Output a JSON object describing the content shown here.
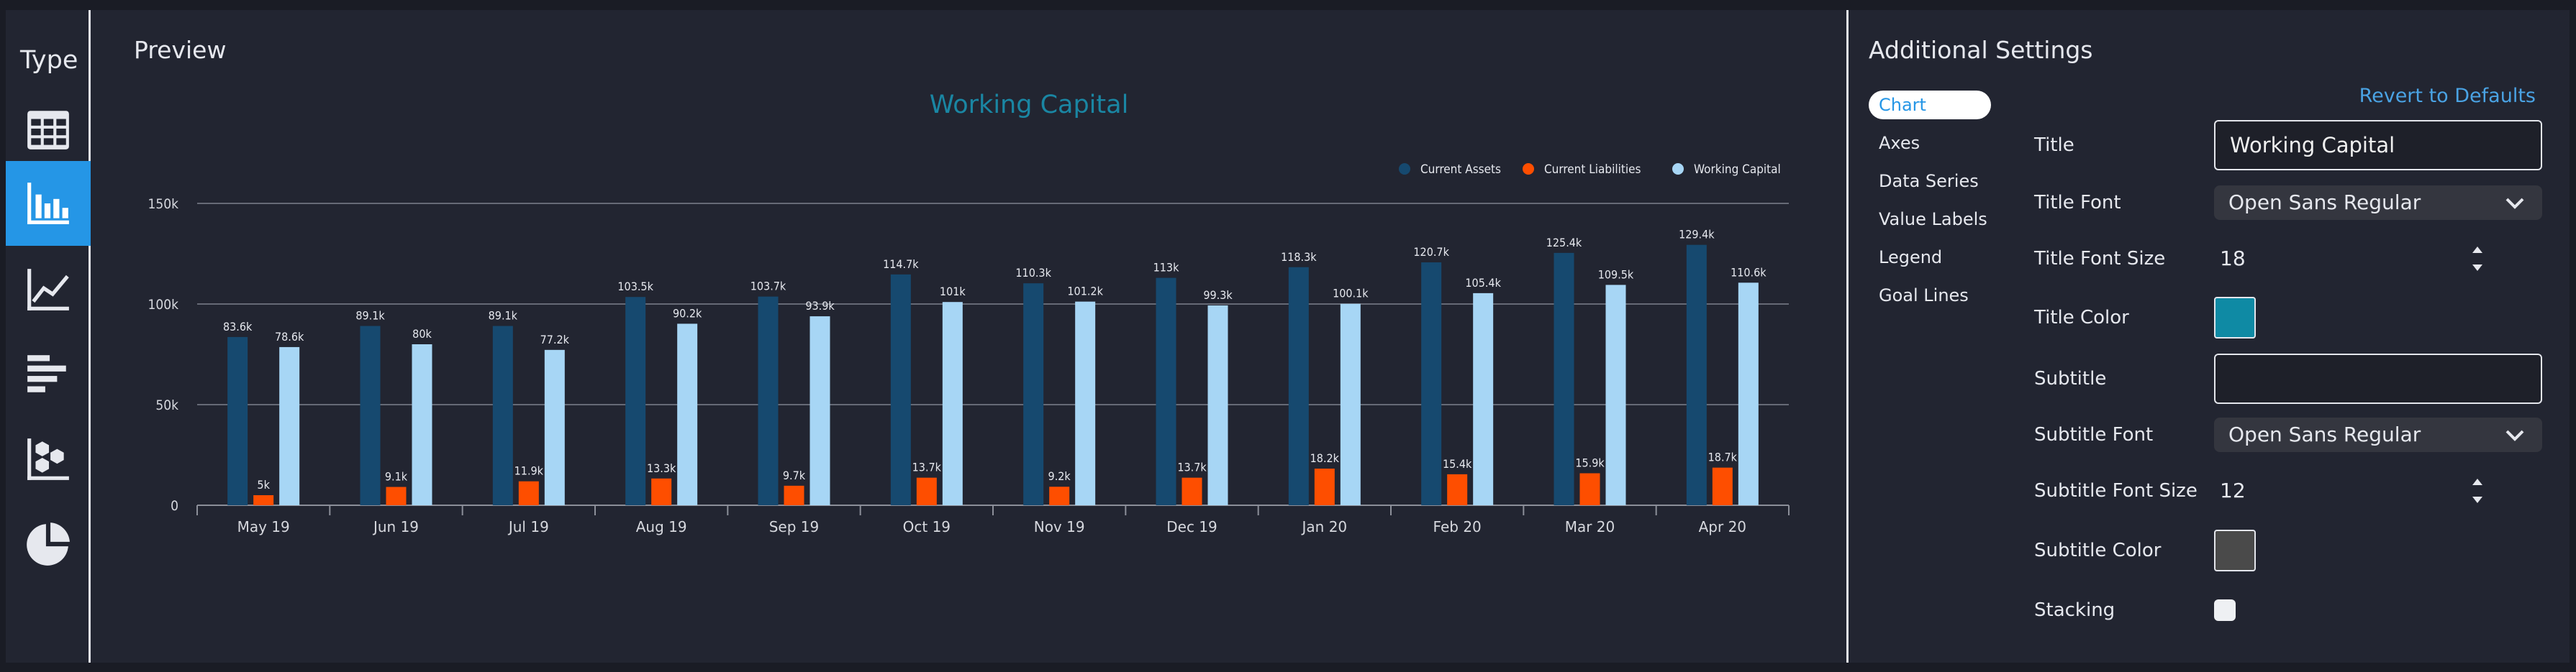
{
  "type_panel": {
    "title": "Type",
    "items": [
      {
        "icon": "table-icon",
        "active": false
      },
      {
        "icon": "bar-chart-icon",
        "active": true
      },
      {
        "icon": "line-chart-icon",
        "active": false
      },
      {
        "icon": "horizontal-bar-icon",
        "active": false
      },
      {
        "icon": "scatter-chart-icon",
        "active": false
      },
      {
        "icon": "pie-chart-icon",
        "active": false
      }
    ]
  },
  "preview": {
    "title": "Preview"
  },
  "chart_data": {
    "type": "bar",
    "title": "Working Capital",
    "title_color": "#1a86a3",
    "categories": [
      "May 19",
      "Jun 19",
      "Jul 19",
      "Aug 19",
      "Sep 19",
      "Oct 19",
      "Nov 19",
      "Dec 19",
      "Jan 20",
      "Feb 20",
      "Mar 20",
      "Apr 20"
    ],
    "series": [
      {
        "name": "Current Assets",
        "color": "#16496f",
        "values": [
          83.6,
          89.1,
          89.1,
          103.5,
          103.7,
          114.7,
          110.3,
          113,
          118.3,
          120.7,
          125.4,
          129.4
        ],
        "labels": [
          "83.6k",
          "89.1k",
          "89.1k",
          "103.5k",
          "103.7k",
          "114.7k",
          "110.3k",
          "113k",
          "118.3k",
          "120.7k",
          "125.4k",
          "129.4k"
        ]
      },
      {
        "name": "Current Liabilities",
        "color": "#fe4e00",
        "values": [
          5,
          9.1,
          11.9,
          13.3,
          9.7,
          13.7,
          9.2,
          13.7,
          18.2,
          15.4,
          15.9,
          18.7
        ],
        "labels": [
          "5k",
          "9.1k",
          "11.9k",
          "13.3k",
          "9.7k",
          "13.7k",
          "9.2k",
          "13.7k",
          "18.2k",
          "15.4k",
          "15.9k",
          "18.7k"
        ]
      },
      {
        "name": "Working Capital",
        "color": "#a7d6f5",
        "values": [
          78.6,
          80,
          77.2,
          90.2,
          93.9,
          101,
          101.2,
          99.3,
          100.1,
          105.4,
          109.5,
          110.6
        ],
        "labels": [
          "78.6k",
          "80k",
          "77.2k",
          "90.2k",
          "93.9k",
          "101k",
          "101.2k",
          "99.3k",
          "100.1k",
          "105.4k",
          "109.5k",
          "110.6k"
        ]
      }
    ],
    "y_ticks": [
      "0",
      "50k",
      "100k",
      "150k"
    ],
    "y_tick_values": [
      0,
      50,
      100,
      150
    ],
    "ylim": [
      0,
      150
    ],
    "y_unit": "thousands",
    "grid": true,
    "legend_position": "top-right"
  },
  "settings": {
    "title": "Additional Settings",
    "revert_label": "Revert to Defaults",
    "nav": [
      {
        "label": "Chart",
        "active": true
      },
      {
        "label": "Axes",
        "active": false
      },
      {
        "label": "Data Series",
        "active": false
      },
      {
        "label": "Value Labels",
        "active": false
      },
      {
        "label": "Legend",
        "active": false
      },
      {
        "label": "Goal Lines",
        "active": false
      }
    ],
    "fields": {
      "title_label": "Title",
      "title_value": "Working Capital",
      "title_font_label": "Title Font",
      "title_font_value": "Open Sans Regular",
      "title_font_size_label": "Title Font Size",
      "title_font_size_value": "18",
      "title_color_label": "Title Color",
      "title_color_value": "#0f8aa4",
      "subtitle_label": "Subtitle",
      "subtitle_value": "",
      "subtitle_font_label": "Subtitle Font",
      "subtitle_font_value": "Open Sans Regular",
      "subtitle_font_size_label": "Subtitle Font Size",
      "subtitle_font_size_value": "12",
      "subtitle_color_label": "Subtitle Color",
      "subtitle_color_value": "#4a4a4a",
      "stacking_label": "Stacking",
      "stacking_value": false
    }
  }
}
